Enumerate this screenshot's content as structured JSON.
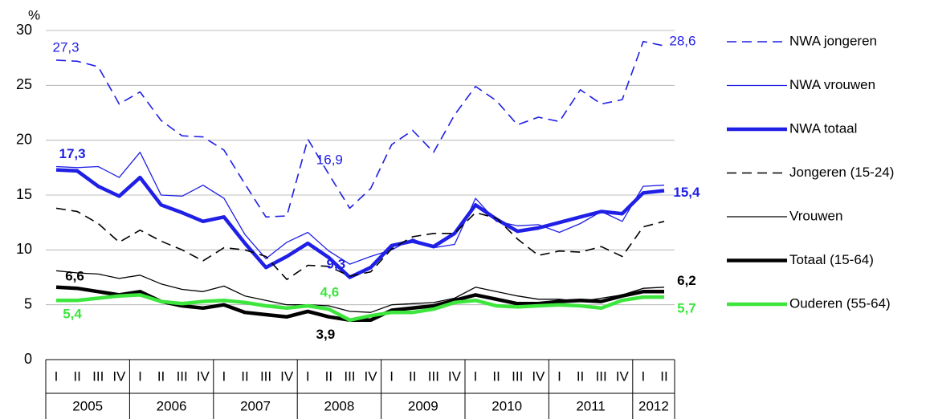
{
  "chart_data": {
    "type": "line",
    "y_label": "%",
    "categories": [
      "I",
      "II",
      "III",
      "IV",
      "I",
      "II",
      "III",
      "IV",
      "I",
      "II",
      "III",
      "IV",
      "I",
      "II",
      "III",
      "IV",
      "I",
      "II",
      "III",
      "IV",
      "I",
      "II",
      "III",
      "IV",
      "I",
      "II",
      "III",
      "IV",
      "I",
      "II"
    ],
    "years": [
      "2005",
      "2006",
      "2007",
      "2008",
      "2009",
      "2010",
      "2011",
      "2012"
    ],
    "ylim": [
      0,
      30
    ],
    "yticks": [
      0,
      5,
      10,
      15,
      20,
      25,
      30
    ],
    "grid": true,
    "legend": "right",
    "series": [
      {
        "name": "NWA jongeren",
        "color": "#1f1fe6",
        "style": "dashed",
        "weight": "medium",
        "values": [
          27.3,
          27.2,
          26.7,
          23.3,
          24.4,
          21.8,
          20.4,
          20.3,
          19.1,
          16.0,
          13.0,
          13.1,
          20.1,
          16.9,
          13.8,
          15.6,
          19.6,
          20.9,
          18.9,
          22.3,
          24.9,
          23.6,
          21.4,
          22.1,
          21.7,
          24.6,
          23.3,
          23.7,
          29.0,
          28.6
        ],
        "value_labels": [
          "27,3",
          null,
          null,
          null,
          null,
          null,
          null,
          null,
          null,
          null,
          null,
          null,
          null,
          "16,9",
          null,
          null,
          null,
          null,
          null,
          null,
          null,
          null,
          null,
          null,
          null,
          null,
          null,
          null,
          null,
          "28,6"
        ],
        "label_weight": "normal"
      },
      {
        "name": "NWA vrouwen",
        "color": "#1f1fe6",
        "style": "solid",
        "weight": "thin",
        "values": [
          17.6,
          17.5,
          17.6,
          16.6,
          18.9,
          15.0,
          14.9,
          15.9,
          14.7,
          11.4,
          9.2,
          10.7,
          11.6,
          9.9,
          8.7,
          9.4,
          10.0,
          11.0,
          10.2,
          10.5,
          14.7,
          12.6,
          12.2,
          12.3,
          11.6,
          12.4,
          13.5,
          12.6,
          15.8,
          15.9
        ]
      },
      {
        "name": "NWA totaal",
        "color": "#1f1fe6",
        "style": "solid",
        "weight": "thick",
        "values": [
          17.3,
          17.2,
          15.8,
          14.9,
          16.6,
          14.1,
          13.4,
          12.6,
          13.0,
          10.6,
          8.4,
          9.4,
          10.6,
          9.3,
          7.5,
          8.4,
          10.4,
          10.8,
          10.3,
          11.5,
          14.1,
          12.8,
          11.7,
          12.0,
          12.5,
          13.0,
          13.5,
          13.3,
          15.2,
          15.4
        ],
        "value_labels": [
          "17,3",
          null,
          null,
          null,
          null,
          null,
          null,
          null,
          null,
          null,
          null,
          null,
          null,
          "9,3",
          null,
          null,
          null,
          null,
          null,
          null,
          null,
          null,
          null,
          null,
          null,
          null,
          null,
          null,
          null,
          "15,4"
        ],
        "label_weight": "bold"
      },
      {
        "name": "Jongeren (15-24)",
        "color": "#000000",
        "style": "dashed",
        "weight": "medium",
        "values": [
          13.8,
          13.5,
          12.4,
          10.7,
          11.8,
          10.8,
          10.0,
          9.0,
          10.2,
          10.0,
          9.4,
          7.3,
          8.6,
          8.5,
          7.6,
          8.0,
          10.1,
          11.2,
          11.5,
          11.5,
          13.4,
          12.9,
          11.0,
          9.5,
          9.9,
          9.8,
          10.3,
          9.4,
          12.1,
          12.6
        ]
      },
      {
        "name": "Vrouwen",
        "color": "#000000",
        "style": "solid",
        "weight": "thin",
        "values": [
          8.1,
          7.9,
          7.8,
          7.4,
          7.7,
          6.9,
          6.4,
          6.2,
          6.7,
          5.8,
          5.4,
          5.0,
          5.0,
          4.9,
          4.4,
          4.3,
          5.0,
          5.1,
          5.2,
          5.6,
          6.6,
          6.2,
          5.8,
          5.5,
          5.5,
          5.3,
          5.6,
          5.9,
          6.5,
          6.6
        ]
      },
      {
        "name": "Totaal (15-64)",
        "color": "#000000",
        "style": "solid",
        "weight": "thick",
        "values": [
          6.6,
          6.5,
          6.2,
          5.9,
          6.2,
          5.3,
          4.9,
          4.7,
          5.0,
          4.3,
          4.1,
          3.9,
          4.4,
          3.9,
          3.6,
          3.6,
          4.5,
          4.7,
          4.9,
          5.4,
          5.9,
          5.5,
          5.1,
          5.1,
          5.3,
          5.4,
          5.3,
          5.8,
          6.2,
          6.2
        ],
        "value_labels": [
          "6,6",
          null,
          null,
          null,
          null,
          null,
          null,
          null,
          null,
          null,
          null,
          null,
          null,
          "3,9",
          null,
          null,
          null,
          null,
          null,
          null,
          null,
          null,
          null,
          null,
          null,
          null,
          null,
          null,
          null,
          "6,2"
        ],
        "label_weight": "bold"
      },
      {
        "name": "Ouderen (55-64)",
        "color": "#3de63d",
        "style": "solid",
        "weight": "thick",
        "values": [
          5.4,
          5.4,
          5.6,
          5.8,
          5.9,
          5.3,
          5.1,
          5.3,
          5.4,
          5.2,
          4.9,
          4.7,
          4.9,
          4.6,
          3.6,
          4.0,
          4.3,
          4.3,
          4.6,
          5.2,
          5.4,
          4.9,
          4.8,
          4.9,
          5.0,
          4.9,
          4.7,
          5.4,
          5.7,
          5.7
        ],
        "value_labels": [
          "5,4",
          null,
          null,
          null,
          null,
          null,
          null,
          null,
          null,
          null,
          null,
          null,
          null,
          "4,6",
          null,
          null,
          null,
          null,
          null,
          null,
          null,
          null,
          null,
          null,
          null,
          null,
          null,
          null,
          null,
          "5,7"
        ],
        "label_weight": "bold"
      }
    ]
  }
}
